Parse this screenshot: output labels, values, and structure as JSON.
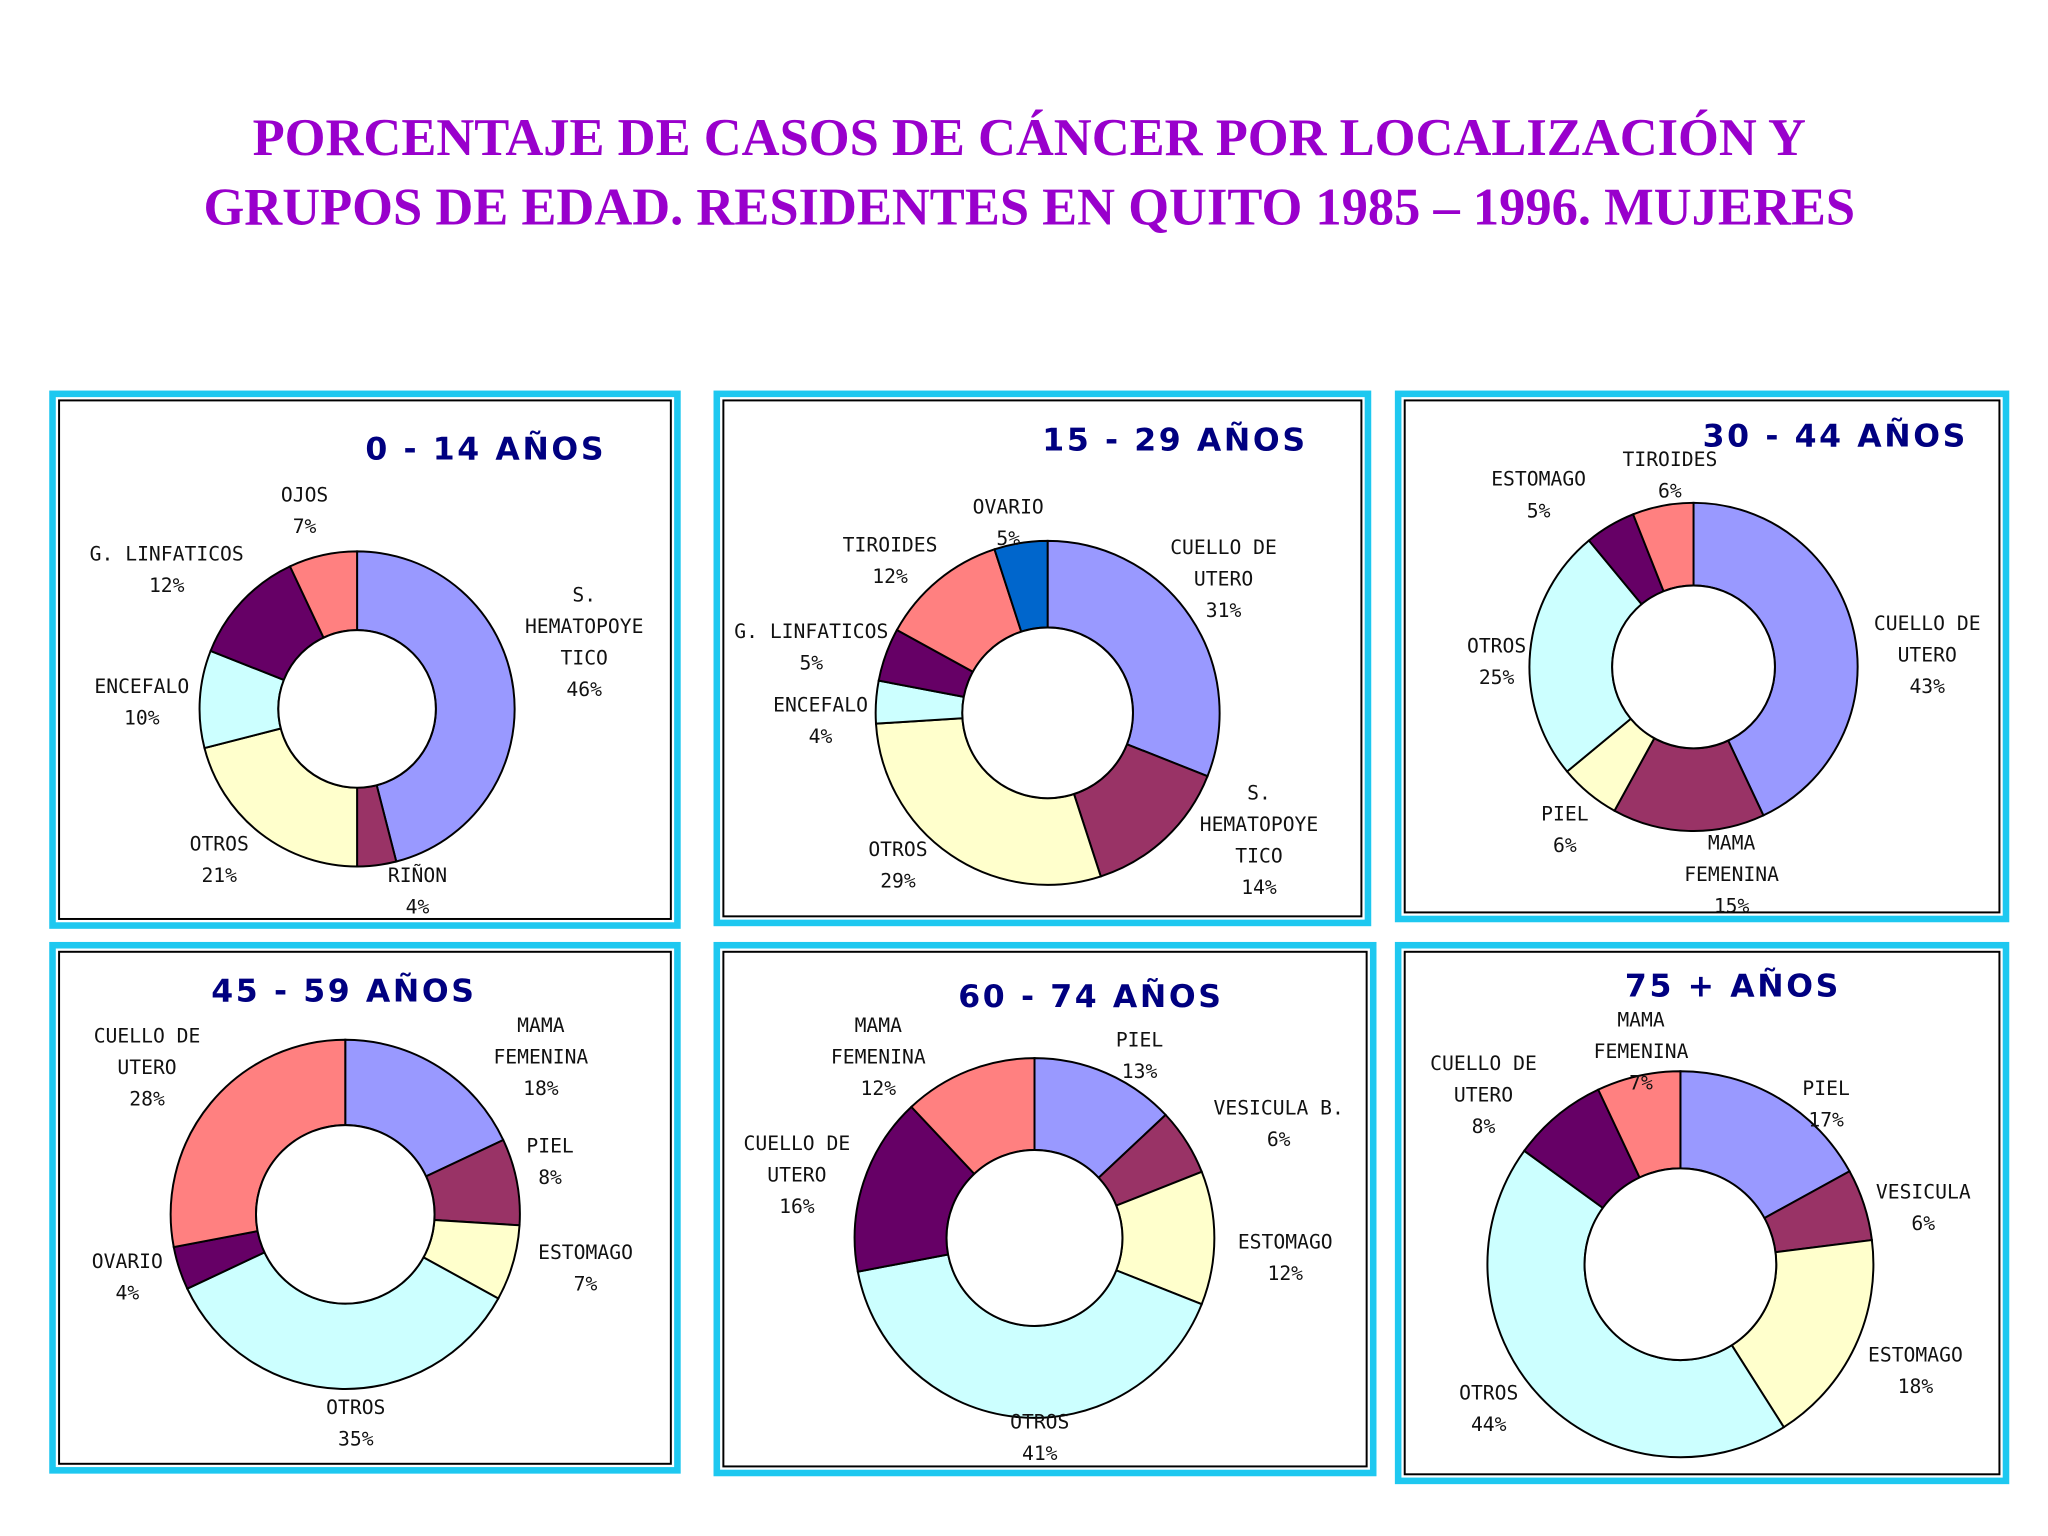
{
  "title_line1": "PORCENTAJE DE CASOS DE CÁNCER POR LOCALIZACIÓN Y",
  "title_line2": "GRUPOS DE EDAD. RESIDENTES EN QUITO 1985 – 1996. MUJERES",
  "colors": {
    "title": "#9900cc",
    "panel_title": "#000080",
    "panel_border": "#1ec8f0"
  },
  "chart_data": [
    {
      "type": "pie",
      "variant": "donut",
      "title": "0 - 14 AÑOS",
      "slices": [
        {
          "label": [
            "S.",
            "HEMATOPOYE",
            "TICO"
          ],
          "value": 46,
          "color": "#9999ff"
        },
        {
          "label": [
            "RIÑON"
          ],
          "value": 4,
          "color": "#993366"
        },
        {
          "label": [
            "OTROS"
          ],
          "value": 21,
          "color": "#ffffcc"
        },
        {
          "label": [
            "ENCEFALO"
          ],
          "value": 10,
          "color": "#ccffff"
        },
        {
          "label": [
            "G. LINFATICOS"
          ],
          "value": 12,
          "color": "#660066"
        },
        {
          "label": [
            "OJOS"
          ],
          "value": 7,
          "color": "#ff8080"
        }
      ]
    },
    {
      "type": "pie",
      "variant": "donut",
      "title": "15 - 29 AÑOS",
      "slices": [
        {
          "label": [
            "CUELLO DE",
            "UTERO"
          ],
          "value": 31,
          "color": "#9999ff"
        },
        {
          "label": [
            "S.",
            "HEMATOPOYE",
            "TICO"
          ],
          "value": 14,
          "color": "#993366"
        },
        {
          "label": [
            "OTROS"
          ],
          "value": 29,
          "color": "#ffffcc"
        },
        {
          "label": [
            "ENCEFALO"
          ],
          "value": 4,
          "color": "#ccffff"
        },
        {
          "label": [
            "G. LINFATICOS"
          ],
          "value": 5,
          "color": "#660066"
        },
        {
          "label": [
            "TIROIDES"
          ],
          "value": 12,
          "color": "#ff8080"
        },
        {
          "label": [
            "OVARIO"
          ],
          "value": 5,
          "color": "#0066cc"
        }
      ]
    },
    {
      "type": "pie",
      "variant": "donut",
      "title": "30 - 44 AÑOS",
      "slices": [
        {
          "label": [
            "CUELLO DE",
            "UTERO"
          ],
          "value": 43,
          "color": "#9999ff"
        },
        {
          "label": [
            "MAMA",
            "FEMENINA"
          ],
          "value": 15,
          "color": "#993366"
        },
        {
          "label": [
            "PIEL"
          ],
          "value": 6,
          "color": "#ffffcc"
        },
        {
          "label": [
            "OTROS"
          ],
          "value": 25,
          "color": "#ccffff"
        },
        {
          "label": [
            "ESTOMAGO"
          ],
          "value": 5,
          "color": "#660066"
        },
        {
          "label": [
            "TIROIDES"
          ],
          "value": 6,
          "color": "#ff8080"
        }
      ]
    },
    {
      "type": "pie",
      "variant": "donut",
      "title": "45 - 59 AÑOS",
      "slices": [
        {
          "label": [
            "MAMA",
            "FEMENINA"
          ],
          "value": 18,
          "color": "#9999ff"
        },
        {
          "label": [
            "PIEL"
          ],
          "value": 8,
          "color": "#993366"
        },
        {
          "label": [
            "ESTOMAGO"
          ],
          "value": 7,
          "color": "#ffffcc"
        },
        {
          "label": [
            "OTROS"
          ],
          "value": 35,
          "color": "#ccffff"
        },
        {
          "label": [
            "OVARIO"
          ],
          "value": 4,
          "color": "#660066"
        },
        {
          "label": [
            "CUELLO DE",
            "UTERO"
          ],
          "value": 28,
          "color": "#ff8080"
        }
      ]
    },
    {
      "type": "pie",
      "variant": "donut",
      "title": "60 - 74 AÑOS",
      "slices": [
        {
          "label": [
            "PIEL"
          ],
          "value": 13,
          "color": "#9999ff"
        },
        {
          "label": [
            "VESICULA B."
          ],
          "value": 6,
          "color": "#993366"
        },
        {
          "label": [
            "ESTOMAGO"
          ],
          "value": 12,
          "color": "#ffffcc"
        },
        {
          "label": [
            "OTROS"
          ],
          "value": 41,
          "color": "#ccffff"
        },
        {
          "label": [
            "CUELLO DE",
            "UTERO"
          ],
          "value": 16,
          "color": "#660066"
        },
        {
          "label": [
            "MAMA",
            "FEMENINA"
          ],
          "value": 12,
          "color": "#ff8080"
        }
      ]
    },
    {
      "type": "pie",
      "variant": "donut",
      "title": "75 + AÑOS",
      "slices": [
        {
          "label": [
            "PIEL"
          ],
          "value": 17,
          "color": "#9999ff"
        },
        {
          "label": [
            "VESICULA"
          ],
          "value": 6,
          "color": "#993366"
        },
        {
          "label": [
            "ESTOMAGO"
          ],
          "value": 18,
          "color": "#ffffcc"
        },
        {
          "label": [
            "OTROS"
          ],
          "value": 44,
          "color": "#ccffff"
        },
        {
          "label": [
            "CUELLO DE",
            "UTERO"
          ],
          "value": 8,
          "color": "#660066"
        },
        {
          "label": [
            "MAMA",
            "FEMENINA"
          ],
          "value": 7,
          "color": "#ff8080"
        }
      ]
    }
  ]
}
